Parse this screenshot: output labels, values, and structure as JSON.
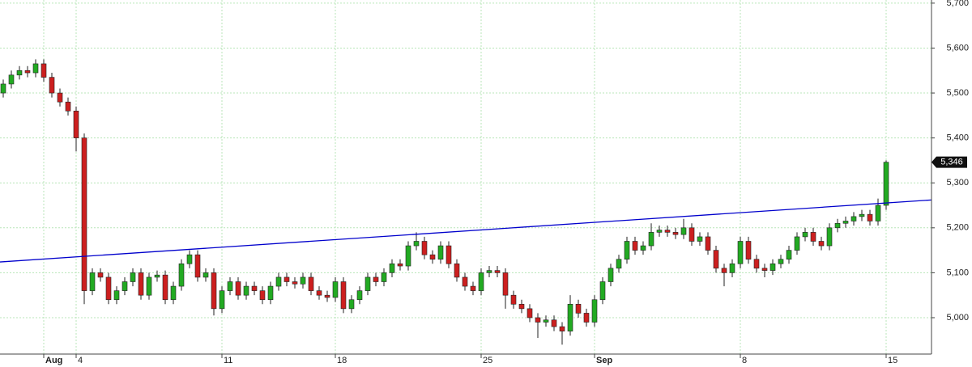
{
  "chart_data": {
    "type": "candlestick",
    "categories": [
      null,
      null,
      null,
      null,
      null,
      "Aug",
      null,
      null,
      null,
      "4",
      null,
      null,
      null,
      null,
      null,
      null,
      null,
      null,
      null,
      null,
      null,
      null,
      null,
      null,
      null,
      null,
      null,
      "11",
      null,
      null,
      null,
      null,
      null,
      null,
      null,
      null,
      null,
      null,
      null,
      null,
      null,
      "18",
      null,
      null,
      null,
      null,
      null,
      null,
      null,
      null,
      null,
      null,
      null,
      null,
      null,
      null,
      null,
      null,
      null,
      "25",
      null,
      null,
      null,
      null,
      null,
      null,
      null,
      null,
      null,
      null,
      null,
      null,
      null,
      "Sep",
      null,
      null,
      null,
      null,
      null,
      null,
      null,
      null,
      null,
      null,
      null,
      null,
      null,
      null,
      null,
      null,
      null,
      "8",
      null,
      null,
      null,
      null,
      null,
      null,
      null,
      null,
      null,
      null,
      null,
      null,
      null,
      null,
      null,
      null,
      null,
      "15"
    ],
    "open": [
      5500,
      5520,
      5540,
      5550,
      5545,
      5565,
      5535,
      5500,
      5480,
      5460,
      5400,
      5060,
      5100,
      5090,
      5040,
      5060,
      5080,
      5100,
      5050,
      5090,
      5095,
      5040,
      5070,
      5120,
      5140,
      5090,
      5100,
      5020,
      5060,
      5080,
      5050,
      5070,
      5060,
      5040,
      5070,
      5090,
      5080,
      5075,
      5090,
      5060,
      5050,
      5045,
      5080,
      5020,
      5040,
      5060,
      5090,
      5080,
      5100,
      5120,
      5115,
      5160,
      5170,
      5140,
      5130,
      5160,
      5120,
      5090,
      5070,
      5060,
      5100,
      5105,
      5100,
      5050,
      5030,
      5020,
      5000,
      4990,
      4995,
      4980,
      4970,
      5030,
      5010,
      4990,
      5040,
      5080,
      5110,
      5130,
      5170,
      5150,
      5160,
      5190,
      5195,
      5190,
      5185,
      5200,
      5170,
      5180,
      5150,
      5110,
      5100,
      5120,
      5170,
      5130,
      5110,
      5105,
      5120,
      5130,
      5150,
      5180,
      5190,
      5170,
      5160,
      5200,
      5210,
      5215,
      5225,
      5230,
      5215,
      5250
    ],
    "high": [
      5530,
      5550,
      5560,
      5560,
      5575,
      5575,
      5545,
      5510,
      5490,
      5470,
      5410,
      5110,
      5110,
      5100,
      5070,
      5090,
      5110,
      5110,
      5100,
      5105,
      5105,
      5080,
      5130,
      5150,
      5150,
      5110,
      5110,
      5070,
      5090,
      5090,
      5080,
      5080,
      5070,
      5080,
      5100,
      5100,
      5090,
      5100,
      5100,
      5070,
      5060,
      5090,
      5090,
      5050,
      5070,
      5100,
      5100,
      5110,
      5130,
      5130,
      5170,
      5190,
      5180,
      5150,
      5170,
      5170,
      5130,
      5100,
      5080,
      5110,
      5115,
      5115,
      5110,
      5060,
      5040,
      5030,
      5010,
      5005,
      5005,
      4990,
      5050,
      5040,
      5020,
      5050,
      5090,
      5120,
      5140,
      5180,
      5180,
      5170,
      5210,
      5205,
      5205,
      5200,
      5220,
      5210,
      5190,
      5190,
      5160,
      5120,
      5130,
      5180,
      5180,
      5140,
      5120,
      5130,
      5140,
      5160,
      5190,
      5200,
      5200,
      5180,
      5210,
      5220,
      5225,
      5235,
      5240,
      5240,
      5265,
      5350
    ],
    "low": [
      5490,
      5510,
      5530,
      5535,
      5535,
      5525,
      5490,
      5470,
      5450,
      5370,
      5030,
      5050,
      5080,
      5030,
      5030,
      5050,
      5070,
      5040,
      5040,
      5080,
      5030,
      5030,
      5060,
      5110,
      5080,
      5080,
      5005,
      5010,
      5050,
      5040,
      5040,
      5050,
      5030,
      5030,
      5060,
      5070,
      5065,
      5065,
      5050,
      5040,
      5035,
      5035,
      5010,
      5010,
      5030,
      5050,
      5070,
      5070,
      5090,
      5105,
      5105,
      5150,
      5130,
      5120,
      5120,
      5110,
      5080,
      5060,
      5050,
      5050,
      5090,
      5090,
      5020,
      5020,
      5010,
      4990,
      4955,
      4980,
      4970,
      4940,
      4960,
      5000,
      4980,
      4980,
      5030,
      5070,
      5100,
      5120,
      5140,
      5140,
      5150,
      5180,
      5180,
      5175,
      5175,
      5160,
      5160,
      5140,
      5100,
      5070,
      5090,
      5110,
      5120,
      5100,
      5090,
      5095,
      5110,
      5120,
      5140,
      5170,
      5160,
      5150,
      5150,
      5190,
      5200,
      5205,
      5215,
      5205,
      5205,
      5240
    ],
    "close": [
      5520,
      5540,
      5550,
      5545,
      5565,
      5535,
      5500,
      5480,
      5460,
      5400,
      5060,
      5100,
      5090,
      5040,
      5060,
      5080,
      5100,
      5050,
      5090,
      5095,
      5040,
      5070,
      5120,
      5140,
      5090,
      5100,
      5020,
      5060,
      5080,
      5050,
      5070,
      5060,
      5040,
      5070,
      5090,
      5080,
      5075,
      5090,
      5060,
      5050,
      5045,
      5080,
      5020,
      5040,
      5060,
      5090,
      5080,
      5100,
      5120,
      5115,
      5160,
      5170,
      5140,
      5130,
      5160,
      5120,
      5090,
      5070,
      5060,
      5100,
      5105,
      5100,
      5050,
      5030,
      5020,
      5000,
      4990,
      4995,
      4980,
      4970,
      5030,
      5010,
      4990,
      5040,
      5080,
      5110,
      5130,
      5170,
      5150,
      5160,
      5190,
      5195,
      5190,
      5185,
      5200,
      5170,
      5180,
      5150,
      5110,
      5100,
      5120,
      5170,
      5130,
      5110,
      5105,
      5120,
      5130,
      5150,
      5180,
      5190,
      5170,
      5160,
      5200,
      5210,
      5215,
      5225,
      5230,
      5215,
      5250,
      5346
    ],
    "up_color": "#22aa22",
    "down_color": "#cc1f1f",
    "ylim": [
      4919,
      5707
    ],
    "yticks": [
      {
        "value": 5000,
        "label": "5,000"
      },
      {
        "value": 5100,
        "label": "5,100"
      },
      {
        "value": 5200,
        "label": "5,200"
      },
      {
        "value": 5300,
        "label": "5,300"
      },
      {
        "value": 5400,
        "label": "5,400"
      },
      {
        "value": 5500,
        "label": "5,500"
      },
      {
        "value": 5600,
        "label": "5,600"
      },
      {
        "value": 5700,
        "label": "5,700"
      }
    ],
    "grid": true,
    "grid_color": "#b8e6b8",
    "trend_line": {
      "color": "#0000cc",
      "values": [
        5124,
        5262
      ]
    },
    "last_price": {
      "value": 5346,
      "label": "5,346"
    }
  }
}
